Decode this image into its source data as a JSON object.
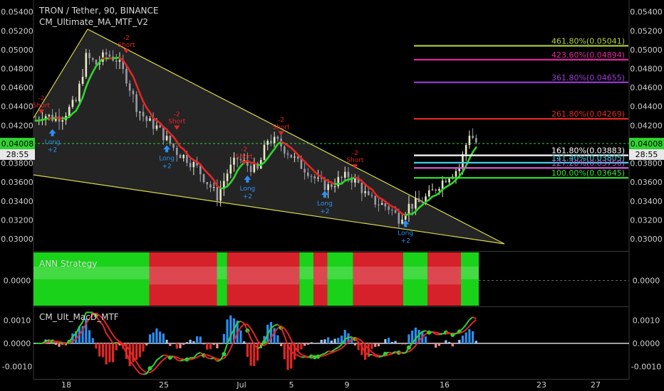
{
  "header": {
    "title": "TRON / Tether, 90, BINANCE",
    "indicator_main": "CM_Ultimate_MA_MTF_V2",
    "indicator_ann": "ANN Strategy",
    "indicator_macd": "CM_Ult_MacD_MTF"
  },
  "current_price": {
    "value": "0.04008",
    "countdown": "28:55"
  },
  "chart_data": [
    {
      "type": "candlestick",
      "pane": "price",
      "y_ticks": [
        "0.05400",
        "0.05200",
        "0.05000",
        "0.04800",
        "0.04600",
        "0.04400",
        "0.04200",
        "0.03800",
        "0.03600",
        "0.03400",
        "0.03200",
        "0.03000"
      ],
      "ylim": [
        0.0288,
        0.0548
      ],
      "x_ticks": [
        "18",
        "25",
        "Jul",
        "5",
        "9",
        "16",
        "23",
        "27"
      ],
      "price_path": [
        [
          0,
          0.0425
        ],
        [
          2,
          0.0432
        ],
        [
          5,
          0.0428
        ],
        [
          8,
          0.043
        ],
        [
          12,
          0.0445
        ],
        [
          15,
          0.0492
        ],
        [
          18,
          0.0485
        ],
        [
          21,
          0.0495
        ],
        [
          24,
          0.049
        ],
        [
          27,
          0.047
        ],
        [
          30,
          0.044
        ],
        [
          33,
          0.0425
        ],
        [
          36,
          0.0418
        ],
        [
          39,
          0.0405
        ],
        [
          42,
          0.0392
        ],
        [
          45,
          0.0385
        ],
        [
          48,
          0.0375
        ],
        [
          51,
          0.036
        ],
        [
          54,
          0.0345
        ],
        [
          57,
          0.037
        ],
        [
          60,
          0.0385
        ],
        [
          63,
          0.0378
        ],
        [
          66,
          0.0372
        ],
        [
          69,
          0.0405
        ],
        [
          72,
          0.0402
        ],
        [
          75,
          0.0392
        ],
        [
          78,
          0.038
        ],
        [
          81,
          0.0372
        ],
        [
          84,
          0.036
        ],
        [
          87,
          0.0355
        ],
        [
          90,
          0.0362
        ],
        [
          93,
          0.0367
        ],
        [
          96,
          0.0358
        ],
        [
          99,
          0.0342
        ],
        [
          102,
          0.0338
        ],
        [
          105,
          0.0333
        ],
        [
          108,
          0.0322
        ],
        [
          111,
          0.0335
        ],
        [
          114,
          0.0338
        ],
        [
          117,
          0.0346
        ],
        [
          120,
          0.0358
        ],
        [
          123,
          0.0368
        ],
        [
          126,
          0.0375
        ],
        [
          129,
          0.0412
        ],
        [
          131,
          0.0402
        ]
      ],
      "annotations": {
        "short_signals": [
          "-2 Short",
          "-2 Short",
          "-2 Short",
          "-2 Short",
          "-2 Short",
          "-2 Short"
        ],
        "long_signals": [
          "Long +2",
          "Long +2",
          "Long +2",
          "Long +2",
          "Long +2"
        ],
        "current_price_line": 0.04008
      },
      "fib_levels": [
        {
          "label": "461.80%(0.05041)",
          "value": 0.05041,
          "color": "#b5d334"
        },
        {
          "label": "423.60%(0.04894)",
          "value": 0.04894,
          "color": "#e0259d"
        },
        {
          "label": "361.80%(0.04655)",
          "value": 0.04655,
          "color": "#9b3cd6"
        },
        {
          "label": "261.80%(0.04269)",
          "value": 0.04269,
          "color": "#e32626"
        },
        {
          "label": "161.80%(0.03883)",
          "value": 0.03883,
          "color": "#ffffff"
        },
        {
          "label": "141.40%(0.03805)",
          "value": 0.03805,
          "color": "#3fd0e6"
        },
        {
          "label": "127.20%(0.03750)",
          "value": 0.0375,
          "color": "#d05ad6"
        },
        {
          "label": "100.00%(0.03645)",
          "value": 0.03645,
          "color": "#2ee82e"
        }
      ]
    },
    {
      "type": "area",
      "pane": "ann_strategy",
      "y_ticks": [
        "0.0000"
      ],
      "segments": [
        {
          "state": "green",
          "start": 0,
          "end": 0.26
        },
        {
          "state": "red",
          "start": 0.26,
          "end": 0.412
        },
        {
          "state": "green",
          "start": 0.412,
          "end": 0.435
        },
        {
          "state": "red",
          "start": 0.435,
          "end": 0.597
        },
        {
          "state": "green",
          "start": 0.597,
          "end": 0.629
        },
        {
          "state": "red",
          "start": 0.629,
          "end": 0.66
        },
        {
          "state": "green",
          "start": 0.66,
          "end": 0.718
        },
        {
          "state": "red",
          "start": 0.718,
          "end": 0.83
        },
        {
          "state": "green",
          "start": 0.83,
          "end": 0.885
        },
        {
          "state": "red",
          "start": 0.885,
          "end": 0.96
        },
        {
          "state": "green",
          "start": 0.96,
          "end": 1.0
        }
      ]
    },
    {
      "type": "line",
      "pane": "macd",
      "y_ticks": [
        "0.0010",
        "0.0000",
        "-0.0010"
      ],
      "ylim": [
        -0.00155,
        0.00155
      ]
    }
  ]
}
